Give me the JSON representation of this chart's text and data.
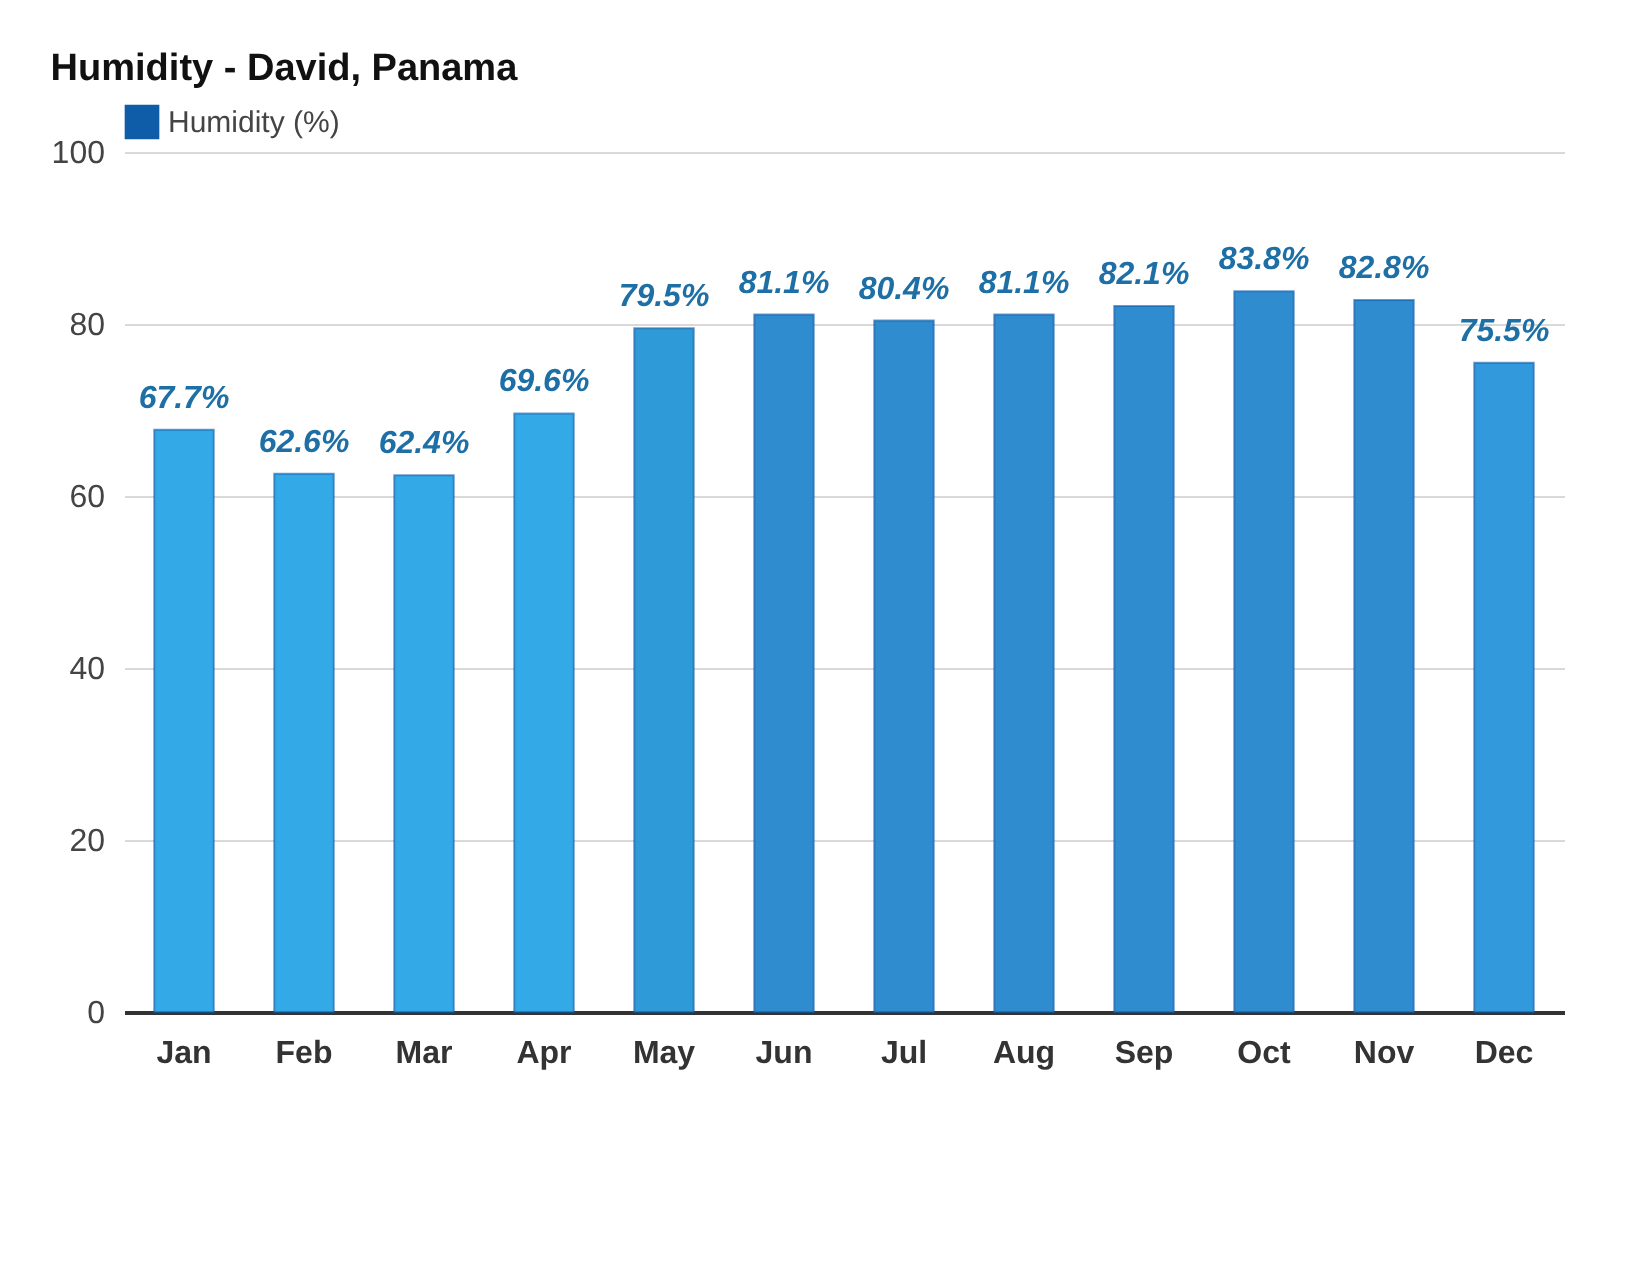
{
  "chart_data": {
    "type": "bar",
    "title": "Humidity - David, Panama",
    "categories": [
      "Jan",
      "Feb",
      "Mar",
      "Apr",
      "May",
      "Jun",
      "Jul",
      "Aug",
      "Sep",
      "Oct",
      "Nov",
      "Dec"
    ],
    "series": [
      {
        "name": "Humidity (%)",
        "color": "#0f5ca8",
        "colors": [
          "#33a9e8",
          "#33a9e8",
          "#33a9e8",
          "#33a9e8",
          "#2e9ad8",
          "#2e8ccf",
          "#2e8ccf",
          "#2e8ccf",
          "#2e8ccf",
          "#2e8ccf",
          "#2e8ccf",
          "#3399dd"
        ],
        "values": [
          67.7,
          62.6,
          62.4,
          69.6,
          79.5,
          81.1,
          80.4,
          81.1,
          82.1,
          83.8,
          82.8,
          75.5
        ],
        "value_labels": [
          "67.7%",
          "62.6%",
          "62.4%",
          "69.6%",
          "79.5%",
          "81.1%",
          "80.4%",
          "81.1%",
          "82.1%",
          "83.8%",
          "82.8%",
          "75.5%"
        ]
      }
    ],
    "ylim": [
      0,
      100
    ],
    "yticks": [
      0,
      20,
      40,
      60,
      80,
      100
    ],
    "grid": "y",
    "legend": "top left"
  }
}
